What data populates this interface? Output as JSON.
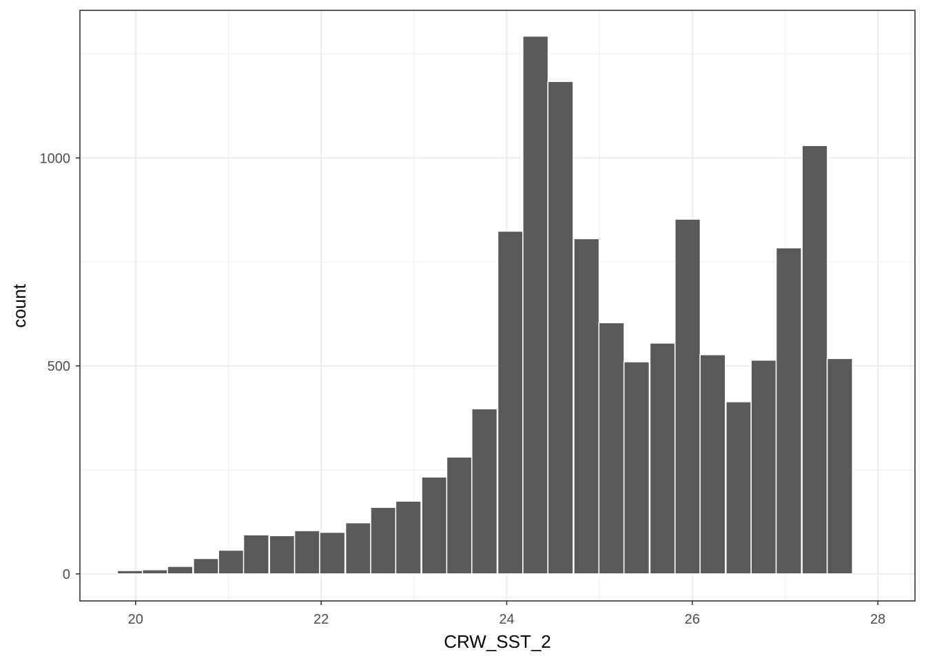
{
  "chart_data": {
    "type": "bar",
    "title": "",
    "xlabel": "CRW_SST_2",
    "ylabel": "count",
    "xlim": [
      19.4,
      28.4
    ],
    "ylim": [
      -65,
      1355
    ],
    "x_ticks": [
      "20",
      "22",
      "24",
      "26",
      "28"
    ],
    "x_tick_values": [
      20,
      22,
      24,
      26,
      28
    ],
    "x_minor_breaks": [
      21,
      23,
      25,
      27
    ],
    "y_ticks": [
      "0",
      "500",
      "1000"
    ],
    "y_tick_values": [
      0,
      500,
      1000
    ],
    "y_minor_breaks": [
      250,
      750,
      1250
    ],
    "bin_width": 0.273,
    "bins": [
      {
        "x": 19.94,
        "count": 8
      },
      {
        "x": 20.21,
        "count": 10
      },
      {
        "x": 20.48,
        "count": 18
      },
      {
        "x": 20.76,
        "count": 37
      },
      {
        "x": 21.03,
        "count": 57
      },
      {
        "x": 21.3,
        "count": 94
      },
      {
        "x": 21.58,
        "count": 92
      },
      {
        "x": 21.85,
        "count": 104
      },
      {
        "x": 22.12,
        "count": 100
      },
      {
        "x": 22.4,
        "count": 123
      },
      {
        "x": 22.67,
        "count": 160
      },
      {
        "x": 22.94,
        "count": 175
      },
      {
        "x": 23.22,
        "count": 233
      },
      {
        "x": 23.49,
        "count": 281
      },
      {
        "x": 23.76,
        "count": 397
      },
      {
        "x": 24.04,
        "count": 824
      },
      {
        "x": 24.31,
        "count": 1293
      },
      {
        "x": 24.58,
        "count": 1184
      },
      {
        "x": 24.86,
        "count": 806
      },
      {
        "x": 25.13,
        "count": 604
      },
      {
        "x": 25.4,
        "count": 510
      },
      {
        "x": 25.68,
        "count": 555
      },
      {
        "x": 25.95,
        "count": 853
      },
      {
        "x": 26.22,
        "count": 527
      },
      {
        "x": 26.5,
        "count": 414
      },
      {
        "x": 26.77,
        "count": 514
      },
      {
        "x": 27.04,
        "count": 784
      },
      {
        "x": 27.32,
        "count": 1030
      },
      {
        "x": 27.59,
        "count": 518
      }
    ],
    "fill_color": "#595959",
    "bar_outline_color": "#ffffff",
    "grid": true,
    "grid_color": "#ebebeb",
    "panel_border_color": "#333333",
    "background": "#ffffff"
  }
}
